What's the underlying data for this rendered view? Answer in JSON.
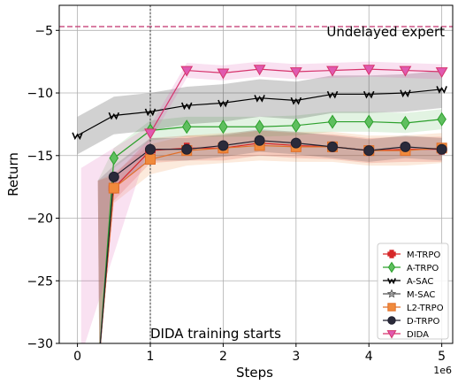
{
  "chart_data": {
    "type": "line",
    "xlabel": "Steps",
    "ylabel": "Return",
    "x_scale_label": "1e6",
    "xlim": [
      -0.25,
      5.15
    ],
    "ylim": [
      -30,
      -3
    ],
    "xticks": [
      0,
      1,
      2,
      3,
      4,
      5
    ],
    "yticks": [
      -30,
      -25,
      -20,
      -15,
      -10,
      -5
    ],
    "xtick_labels": [
      "0",
      "1",
      "2",
      "3",
      "4",
      "5"
    ],
    "ytick_labels": [
      "−30",
      "−25",
      "−20",
      "−15",
      "−10",
      "−5"
    ],
    "grid": true,
    "legend_position": "lower-right",
    "annotations": {
      "expert_label": "Undelayed expert",
      "expert_value": -4.7,
      "expert_color": "#c8457a",
      "dida_start_label": "DIDA training starts",
      "dida_start_x": 1.0
    },
    "series": [
      {
        "name": "M-TRPO",
        "color": "#d62728",
        "marker": "plus",
        "x": [
          0.5,
          1.0,
          1.5,
          2.0,
          2.5,
          3.0,
          3.5,
          4.0,
          4.5,
          5.0
        ],
        "y": [
          -17.6,
          -14.6,
          -14.4,
          -14.4,
          -14.0,
          -14.2,
          -14.3,
          -14.6,
          -14.5,
          -14.5
        ],
        "band": 1.0
      },
      {
        "name": "A-TRPO",
        "color": "#2ca02c",
        "fill": "#5fbf5f",
        "marker": "diamond",
        "x": [
          0.5,
          1.0,
          1.5,
          2.0,
          2.5,
          3.0,
          3.5,
          4.0,
          4.5,
          5.0
        ],
        "y": [
          -15.2,
          -13.0,
          -12.7,
          -12.7,
          -12.7,
          -12.6,
          -12.3,
          -12.3,
          -12.4,
          -12.1
        ],
        "band": 0.8
      },
      {
        "name": "A-SAC",
        "color": "#000000",
        "marker": "w",
        "x": [
          0.0,
          0.5,
          1.0,
          1.5,
          2.0,
          2.5,
          3.0,
          3.5,
          4.0,
          4.5,
          5.0
        ],
        "y": [
          -13.4,
          -11.8,
          -11.5,
          -11.0,
          -10.8,
          -10.4,
          -10.6,
          -10.1,
          -10.1,
          -10.0,
          -9.7
        ],
        "band": 1.5
      },
      {
        "name": "M-SAC",
        "color": "#555555",
        "marker": "star",
        "x": [],
        "y": [],
        "band": 0
      },
      {
        "name": "L2-TRPO",
        "color": "#e0702a",
        "fill": "#f08a3c",
        "marker": "square",
        "x": [
          0.5,
          1.0,
          1.5,
          2.0,
          2.5,
          3.0,
          3.5,
          4.0,
          4.5,
          5.0
        ],
        "y": [
          -17.6,
          -15.3,
          -14.6,
          -14.4,
          -14.2,
          -14.3,
          -14.3,
          -14.6,
          -14.6,
          -14.4
        ],
        "band": 1.2
      },
      {
        "name": "D-TRPO",
        "color": "#1f1f2e",
        "fill": "#2a2a3a",
        "marker": "circle",
        "x": [
          0.5,
          1.0,
          1.5,
          2.0,
          2.5,
          3.0,
          3.5,
          4.0,
          4.5,
          5.0
        ],
        "y": [
          -16.7,
          -14.5,
          -14.5,
          -14.2,
          -13.8,
          -14.0,
          -14.3,
          -14.6,
          -14.3,
          -14.5
        ],
        "band": 0.9
      },
      {
        "name": "DIDA",
        "color": "#d6336c",
        "fill": "#e05ab0",
        "marker": "triangle-down",
        "x": [
          1.0,
          1.5,
          2.0,
          2.5,
          3.0,
          3.5,
          4.0,
          4.5,
          5.0
        ],
        "y": [
          -13.2,
          -8.2,
          -8.4,
          -8.1,
          -8.3,
          -8.2,
          -8.1,
          -8.2,
          -8.3
        ],
        "band": 0.6
      }
    ]
  }
}
